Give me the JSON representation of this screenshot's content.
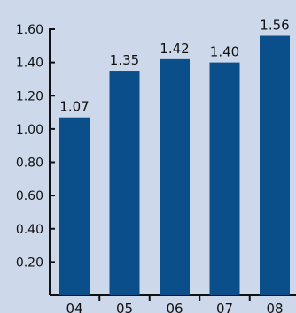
{
  "chart_data": {
    "type": "bar",
    "title": "",
    "xlabel": "",
    "ylabel": "",
    "categories": [
      "04",
      "05",
      "06",
      "07",
      "08"
    ],
    "values": [
      1.07,
      1.35,
      1.42,
      1.4,
      1.56
    ],
    "value_labels": [
      "1.07",
      "1.35",
      "1.42",
      "1.40",
      "1.56"
    ],
    "ylim": [
      0,
      1.6
    ],
    "yticks": [
      0.2,
      0.4,
      0.6,
      0.8,
      1.0,
      1.2,
      1.4,
      1.6
    ],
    "ytick_labels": [
      "0.20",
      "0.40",
      "0.60",
      "0.80",
      "1.00",
      "1.20",
      "1.40",
      "1.60"
    ],
    "grid": false,
    "legend": "none",
    "colors": {
      "bar": "#0b4f8a",
      "background": "#cdd8ea",
      "axis": "#111111"
    }
  }
}
